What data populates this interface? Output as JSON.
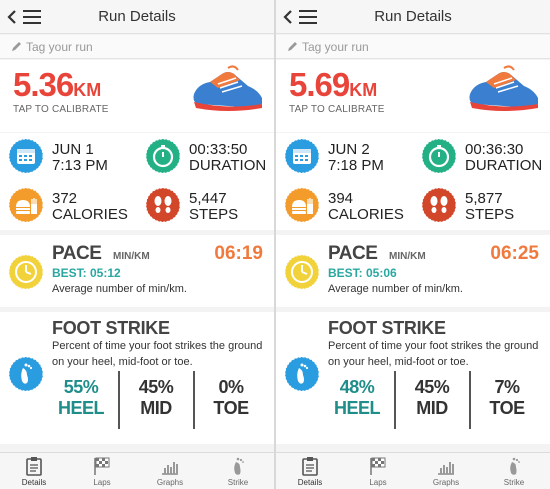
{
  "screens": [
    {
      "header": {
        "title": "Run Details"
      },
      "tag": {
        "placeholder": "Tag your run"
      },
      "distance": {
        "value": "5.36",
        "unit": "KM",
        "calibrate": "TAP TO CALIBRATE"
      },
      "stats": {
        "date": "JUN 1",
        "time": "7:13 PM",
        "duration_value": "00:33:50",
        "duration_label": "DURATION",
        "calories_value": "372",
        "calories_label": "CALORIES",
        "steps_value": "5,447",
        "steps_label": "STEPS"
      },
      "pace": {
        "title": "PACE",
        "unit": "MIN/KM",
        "value": "06:19",
        "best": "BEST: 05:12",
        "description": "Average number of min/km."
      },
      "foot_strike": {
        "title": "FOOT STRIKE",
        "description": "Percent of time your foot strikes the ground on your heel, mid-foot or toe.",
        "columns": [
          {
            "percent": "55%",
            "label": "HEEL"
          },
          {
            "percent": "45%",
            "label": "MID"
          },
          {
            "percent": "0%",
            "label": "TOE"
          }
        ]
      },
      "tabs": [
        {
          "label": "Details"
        },
        {
          "label": "Laps"
        },
        {
          "label": "Graphs"
        },
        {
          "label": "Strike"
        }
      ]
    },
    {
      "header": {
        "title": "Run Details"
      },
      "tag": {
        "placeholder": "Tag your run"
      },
      "distance": {
        "value": "5.69",
        "unit": "KM",
        "calibrate": "TAP TO CALIBRATE"
      },
      "stats": {
        "date": "JUN 2",
        "time": "7:18 PM",
        "duration_value": "00:36:30",
        "duration_label": "DURATION",
        "calories_value": "394",
        "calories_label": "CALORIES",
        "steps_value": "5,877",
        "steps_label": "STEPS"
      },
      "pace": {
        "title": "PACE",
        "unit": "MIN/KM",
        "value": "06:25",
        "best": "BEST: 05:06",
        "description": "Average number of min/km."
      },
      "foot_strike": {
        "title": "FOOT STRIKE",
        "description": "Percent of time your foot strikes the ground on your heel, mid-foot or toe.",
        "columns": [
          {
            "percent": "48%",
            "label": "HEEL"
          },
          {
            "percent": "45%",
            "label": "MID"
          },
          {
            "percent": "7%",
            "label": "TOE"
          }
        ]
      },
      "tabs": [
        {
          "label": "Details"
        },
        {
          "label": "Laps"
        },
        {
          "label": "Graphs"
        },
        {
          "label": "Strike"
        }
      ]
    }
  ],
  "icons": {
    "back": "back-arrow-icon",
    "menu": "hamburger-menu-icon",
    "tag": "pencil-icon",
    "shoe": "running-shoe-image",
    "date": "calendar-icon",
    "duration": "stopwatch-icon",
    "calories": "burger-fries-icon",
    "steps": "footsteps-icon",
    "pace": "clock-icon",
    "foot_strike": "footprint-icon",
    "tabs": [
      "clipboard-icon",
      "checkered-flag-icon",
      "bar-chart-icon",
      "footprint-icon"
    ]
  },
  "colors": {
    "distance": "#e8443a",
    "pace_value": "#f07a3e",
    "pace_best": "#2aa7a0",
    "heel_highlight": "#1f8d8a",
    "calendar": "#2a9de0",
    "stopwatch": "#23b085",
    "calories": "#f39c2b",
    "steps": "#d2462a",
    "clock": "#f2d23a",
    "footprint": "#2a9de0"
  }
}
